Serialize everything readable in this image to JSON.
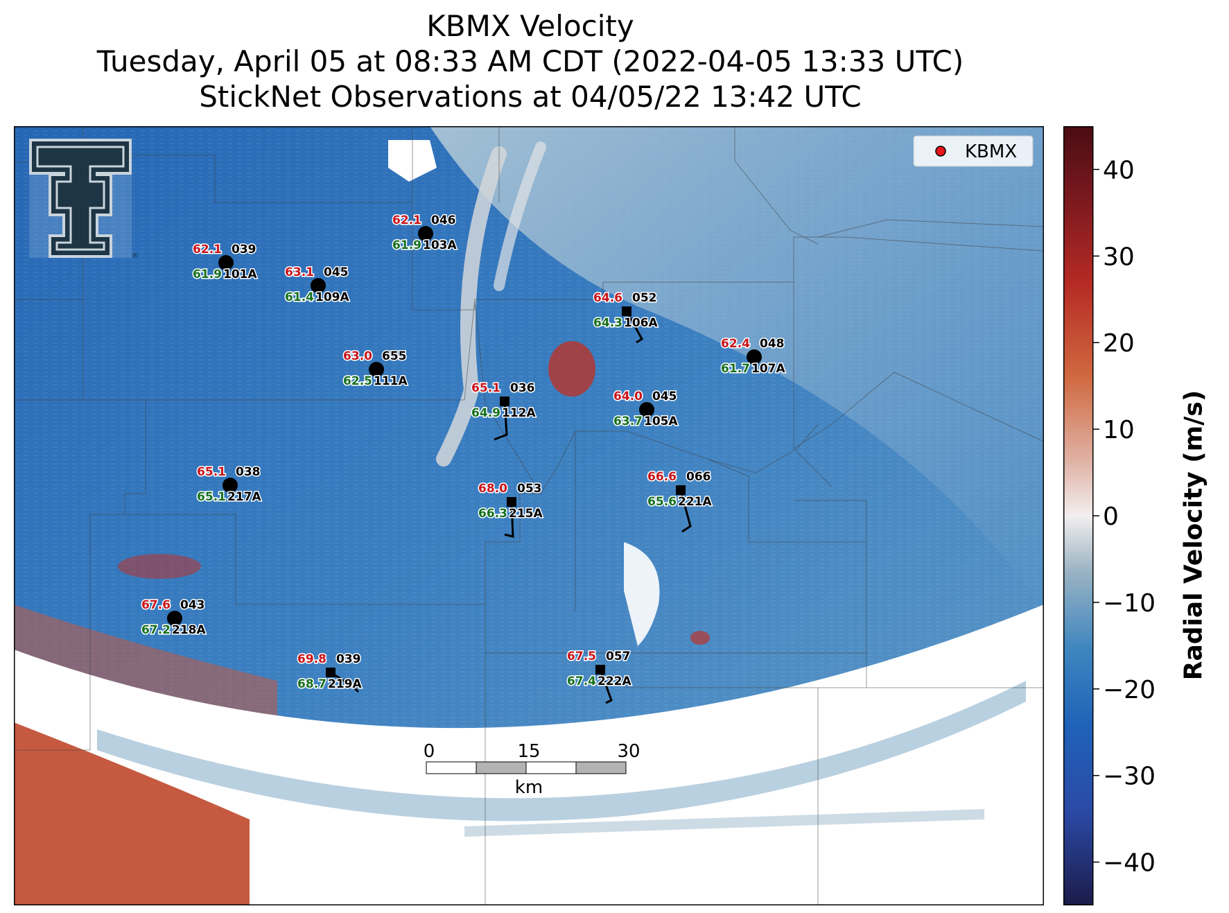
{
  "title": {
    "line1": "KBMX Velocity",
    "line2": "Tuesday, April 05 at 08:33 AM CDT (2022-04-05 13:33 UTC)",
    "line3": "StickNet Observations at 04/05/22 13:42 UTC"
  },
  "legend": {
    "label": "KBMX",
    "marker_color": "#e8141b"
  },
  "logo": {
    "registered_mark": "®"
  },
  "colorbar": {
    "label": "Radial Velocity (m/s)",
    "min": -45,
    "max": 45,
    "ticks": [
      "40",
      "30",
      "20",
      "10",
      "0",
      "−10",
      "−20",
      "−30",
      "−40"
    ],
    "tick_values": [
      40,
      30,
      20,
      10,
      0,
      -10,
      -20,
      -30,
      -40
    ],
    "colors": [
      "#1c1b4a",
      "#2b4aa6",
      "#1f62b8",
      "#3f86bf",
      "#9cb4c4",
      "#f2efee",
      "#e0b2a5",
      "#d0683f",
      "#b52a24",
      "#7e1a1f",
      "#4a0d13"
    ]
  },
  "scale_bar": {
    "ticks": [
      "0",
      "15",
      "30"
    ],
    "unit": "km"
  },
  "colors": {
    "temperature": "#c8151b",
    "dewpoint": "#17701f",
    "text": "#000000",
    "velocity_base": "#2c6cb5",
    "velocity_inbound_light": "#7ea9cb",
    "outbound": "#c0392b",
    "missing": "#ffffff"
  },
  "stations": [
    {
      "id": "101A",
      "temp": "62.1",
      "dewpoint": "61.9",
      "pressure": "039",
      "marker": "circle"
    },
    {
      "id": "109A",
      "temp": "63.1",
      "dewpoint": "61.4",
      "pressure": "045",
      "marker": "circle"
    },
    {
      "id": "103A",
      "temp": "62.1",
      "dewpoint": "61.9",
      "pressure": "046",
      "marker": "circle"
    },
    {
      "id": "111A",
      "temp": "63.0",
      "dewpoint": "62.5",
      "pressure": "655",
      "marker": "circle"
    },
    {
      "id": "106A",
      "temp": "64.6",
      "dewpoint": "64.3",
      "pressure": "052",
      "marker": "square",
      "barb": true
    },
    {
      "id": "107A",
      "temp": "62.4",
      "dewpoint": "61.7",
      "pressure": "048",
      "marker": "circle"
    },
    {
      "id": "112A",
      "temp": "65.1",
      "dewpoint": "64.9",
      "pressure": "036",
      "marker": "square",
      "barb": true
    },
    {
      "id": "105A",
      "temp": "64.0",
      "dewpoint": "63.7",
      "pressure": "045",
      "marker": "circle"
    },
    {
      "id": "217A",
      "temp": "65.1",
      "dewpoint": "65.1",
      "pressure": "038",
      "marker": "circle"
    },
    {
      "id": "215A",
      "temp": "68.0",
      "dewpoint": "66.3",
      "pressure": "053",
      "marker": "square",
      "barb": true
    },
    {
      "id": "221A",
      "temp": "66.6",
      "dewpoint": "65.6",
      "pressure": "066",
      "marker": "square",
      "barb": true
    },
    {
      "id": "218A",
      "temp": "67.6",
      "dewpoint": "67.2",
      "pressure": "043",
      "marker": "circle"
    },
    {
      "id": "219A",
      "temp": "69.8",
      "dewpoint": "68.7",
      "pressure": "039",
      "marker": "square",
      "barb": true
    },
    {
      "id": "222A",
      "temp": "67.5",
      "dewpoint": "67.4",
      "pressure": "057",
      "marker": "square",
      "barb": true
    }
  ]
}
